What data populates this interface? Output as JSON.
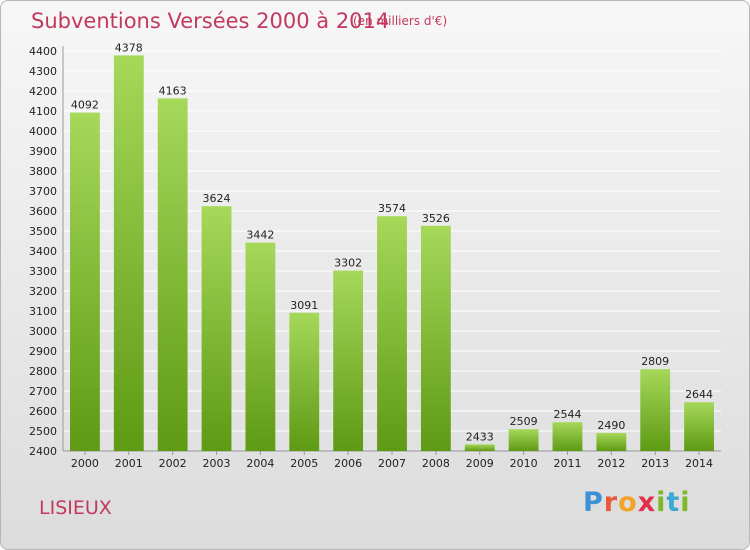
{
  "header": {
    "title": "Subventions Versées 2000 à 2014",
    "subtitle": "(en milliers d'€)"
  },
  "footer": {
    "city": "LISIEUX",
    "logo_text": "Proxiti"
  },
  "colors": {
    "bar_top": "#a6d85a",
    "bar_bottom": "#5e9a14",
    "title": "#c2395f",
    "grid": "#ffffff"
  },
  "chart_data": {
    "type": "bar",
    "title": "Subventions Versées 2000 à 2014",
    "subtitle": "(en milliers d'€)",
    "categories": [
      "2000",
      "2001",
      "2002",
      "2003",
      "2004",
      "2005",
      "2006",
      "2007",
      "2008",
      "2009",
      "2010",
      "2011",
      "2012",
      "2013",
      "2014"
    ],
    "values": [
      4092,
      4378,
      4163,
      3624,
      3442,
      3091,
      3302,
      3574,
      3526,
      2433,
      2509,
      2544,
      2490,
      2809,
      2644
    ],
    "ylim": [
      2400,
      4400
    ],
    "yticks": [
      2400,
      2500,
      2600,
      2700,
      2800,
      2900,
      3000,
      3100,
      3200,
      3300,
      3400,
      3500,
      3600,
      3700,
      3800,
      3900,
      4000,
      4100,
      4200,
      4300,
      4400
    ],
    "grid": true,
    "data_labels": true
  }
}
